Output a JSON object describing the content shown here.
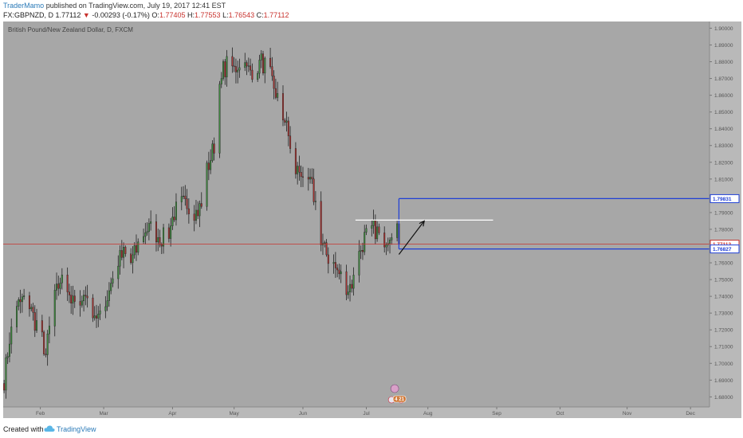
{
  "header": {
    "author": "TraderMamo",
    "published": "published on TradingView.com, July 19, 2017 12:41 EST",
    "symbol": "FX:GBPNZD, D",
    "last": "1.77112",
    "arrow": "▼",
    "change": "-0.00293 (-0.17%)",
    "o_label": "O:",
    "o_value": "1.77405",
    "h_label": "H:",
    "h_value": "1.77553",
    "l_label": "L:",
    "l_value": "1.76543",
    "c_label": "C:",
    "c_value": "1.77112"
  },
  "footer": {
    "created_with": "Created with",
    "brand": "TradingView"
  },
  "colors": {
    "background": "#a7a7a7",
    "up": "#3d8b3d",
    "down": "#a8302e",
    "axis_text": "#555555",
    "price_line": "#c8322d",
    "box": "#1f3fd6",
    "white_line": "#ffffff"
  },
  "chart_data": {
    "type": "candlestick",
    "title": "British Pound/New Zealand Dollar, D, FXCM",
    "y_ticks": [
      "1.90000",
      "1.89000",
      "1.88000",
      "1.87000",
      "1.86000",
      "1.85000",
      "1.84000",
      "1.83000",
      "1.82000",
      "1.81000",
      "1.80000",
      "1.79000",
      "1.78000",
      "1.77000",
      "1.76000",
      "1.75000",
      "1.74000",
      "1.73000",
      "1.72000",
      "1.71000",
      "1.70000",
      "1.69000",
      "1.68000"
    ],
    "y_tick_values": [
      1.9,
      1.89,
      1.88,
      1.87,
      1.86,
      1.85,
      1.84,
      1.83,
      1.82,
      1.81,
      1.8,
      1.79,
      1.78,
      1.77,
      1.76,
      1.75,
      1.74,
      1.73,
      1.72,
      1.71,
      1.7,
      1.69,
      1.68
    ],
    "ylim": [
      1.674,
      1.904
    ],
    "x_ticks": [
      "Feb",
      "Mar",
      "Apr",
      "May",
      "Jun",
      "Jul",
      "Aug",
      "Sep",
      "Oct",
      "Nov",
      "Dec"
    ],
    "x_tick_index": [
      20,
      55,
      93,
      127,
      165,
      200,
      234,
      272,
      307,
      344,
      379
    ],
    "n_slots": 390,
    "current_price": 1.77112,
    "price_labels": [
      {
        "text": "1.79831",
        "value": 1.79831
      },
      {
        "text": "1.77112",
        "value": 1.77112
      },
      {
        "text": "1.76827",
        "value": 1.76827
      }
    ],
    "box_top": 1.79831,
    "box_bottom": 1.76827,
    "box_start": 218,
    "white_line_value": 1.7855,
    "white_line_range": [
      194,
      270
    ],
    "projection": [
      {
        "i": 218,
        "v": 1.765
      },
      {
        "i": 232,
        "v": 1.785
      }
    ],
    "events_label": "4 21",
    "anchors": [
      {
        "i": 0,
        "v": 1.69
      },
      {
        "i": 3,
        "v": 1.715
      },
      {
        "i": 8,
        "v": 1.735
      },
      {
        "i": 12,
        "v": 1.74
      },
      {
        "i": 17,
        "v": 1.725
      },
      {
        "i": 20,
        "v": 1.72
      },
      {
        "i": 23,
        "v": 1.705
      },
      {
        "i": 27,
        "v": 1.735
      },
      {
        "i": 31,
        "v": 1.75
      },
      {
        "i": 35,
        "v": 1.745
      },
      {
        "i": 38,
        "v": 1.735
      },
      {
        "i": 42,
        "v": 1.74
      },
      {
        "i": 46,
        "v": 1.74
      },
      {
        "i": 50,
        "v": 1.73
      },
      {
        "i": 54,
        "v": 1.725
      },
      {
        "i": 58,
        "v": 1.745
      },
      {
        "i": 62,
        "v": 1.76
      },
      {
        "i": 66,
        "v": 1.765
      },
      {
        "i": 70,
        "v": 1.76
      },
      {
        "i": 74,
        "v": 1.77
      },
      {
        "i": 78,
        "v": 1.78
      },
      {
        "i": 82,
        "v": 1.78
      },
      {
        "i": 86,
        "v": 1.775
      },
      {
        "i": 90,
        "v": 1.775
      },
      {
        "i": 94,
        "v": 1.79
      },
      {
        "i": 98,
        "v": 1.795
      },
      {
        "i": 102,
        "v": 1.795
      },
      {
        "i": 106,
        "v": 1.79
      },
      {
        "i": 110,
        "v": 1.795
      },
      {
        "i": 112,
        "v": 1.815
      },
      {
        "i": 116,
        "v": 1.83
      },
      {
        "i": 118,
        "v": 1.855
      },
      {
        "i": 121,
        "v": 1.875
      },
      {
        "i": 124,
        "v": 1.88
      },
      {
        "i": 127,
        "v": 1.875
      },
      {
        "i": 130,
        "v": 1.88
      },
      {
        "i": 134,
        "v": 1.875
      },
      {
        "i": 138,
        "v": 1.875
      },
      {
        "i": 142,
        "v": 1.88
      },
      {
        "i": 146,
        "v": 1.875
      },
      {
        "i": 149,
        "v": 1.865
      },
      {
        "i": 152,
        "v": 1.855
      },
      {
        "i": 155,
        "v": 1.845
      },
      {
        "i": 158,
        "v": 1.83
      },
      {
        "i": 161,
        "v": 1.815
      },
      {
        "i": 164,
        "v": 1.815
      },
      {
        "i": 167,
        "v": 1.81
      },
      {
        "i": 170,
        "v": 1.805
      },
      {
        "i": 173,
        "v": 1.79
      },
      {
        "i": 175,
        "v": 1.77
      },
      {
        "i": 178,
        "v": 1.765
      },
      {
        "i": 181,
        "v": 1.76
      },
      {
        "i": 184,
        "v": 1.755
      },
      {
        "i": 187,
        "v": 1.75
      },
      {
        "i": 190,
        "v": 1.745
      },
      {
        "i": 193,
        "v": 1.75
      },
      {
        "i": 196,
        "v": 1.765
      },
      {
        "i": 199,
        "v": 1.775
      },
      {
        "i": 202,
        "v": 1.78
      },
      {
        "i": 205,
        "v": 1.78
      },
      {
        "i": 208,
        "v": 1.775
      },
      {
        "i": 211,
        "v": 1.775
      },
      {
        "i": 214,
        "v": 1.78
      },
      {
        "i": 216,
        "v": 1.785
      },
      {
        "i": 218,
        "v": 1.771
      }
    ]
  }
}
